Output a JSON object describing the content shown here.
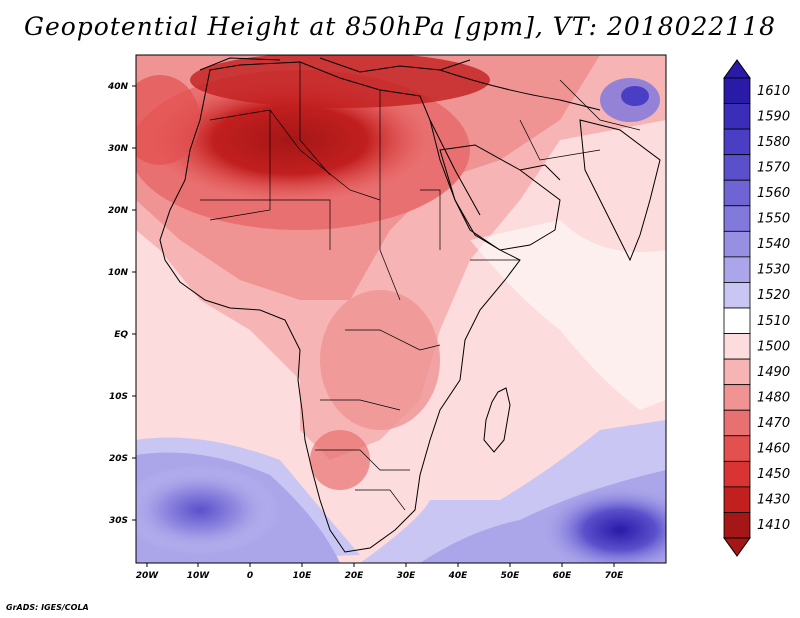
{
  "title": "Geopotential Height at 850hPa [gpm], VT: 2018022118",
  "credit": "GrADS: IGES/COLA",
  "x_ticks": [
    "20W",
    "10W",
    "0",
    "10E",
    "20E",
    "30E",
    "40E",
    "50E",
    "60E",
    "70E"
  ],
  "y_ticks": [
    "40N",
    "30N",
    "20N",
    "10N",
    "EQ",
    "10S",
    "20S",
    "30S"
  ],
  "colorbar": {
    "levels": [
      "1610",
      "1590",
      "1580",
      "1570",
      "1560",
      "1550",
      "1540",
      "1530",
      "1520",
      "1510",
      "1500",
      "1490",
      "1480",
      "1470",
      "1460",
      "1450",
      "1430",
      "1410"
    ],
    "colors": [
      "#2a1aa8",
      "#3a2db8",
      "#4a3ec4",
      "#5b50cc",
      "#6e64d4",
      "#8279dc",
      "#968fe2",
      "#aba6ea",
      "#c9c6f3",
      "#ffffff",
      "#fcdcdc",
      "#f6b4b4",
      "#ef9393",
      "#e97070",
      "#e35050",
      "#d83434",
      "#c21f1f",
      "#a51616"
    ]
  }
}
